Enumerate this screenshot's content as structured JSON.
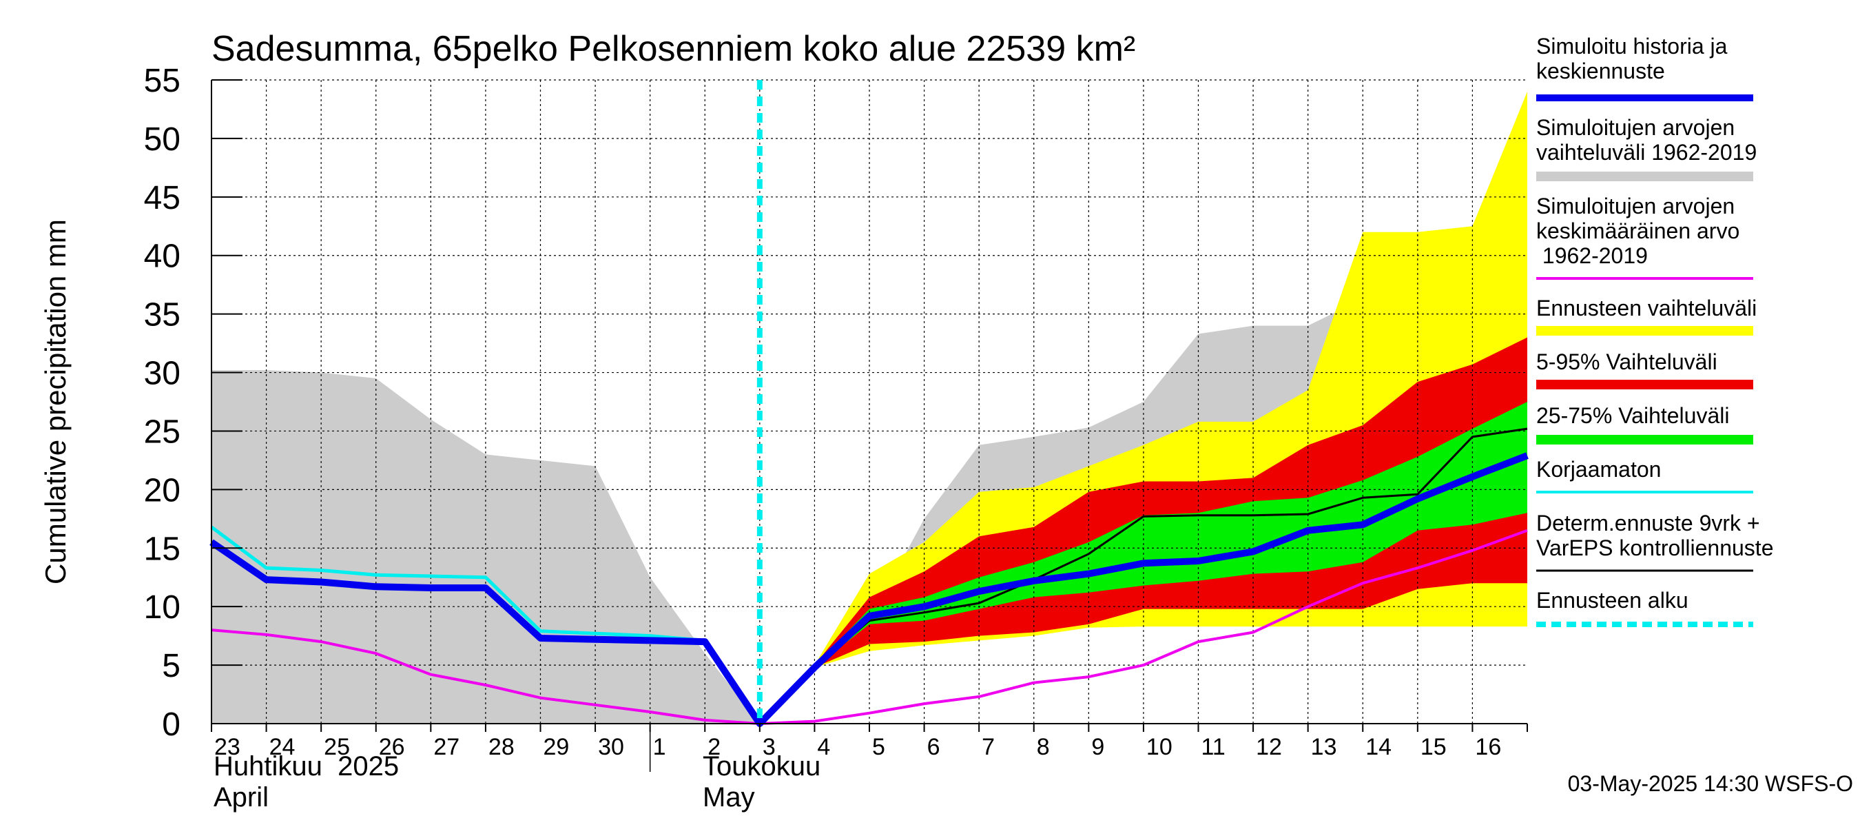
{
  "chart_data": {
    "type": "area",
    "title": "Sadesumma, 65pelko Pelkosenniem koko alue 22539 km²",
    "ylabel": "Cumulative precipitation   mm",
    "ylim": [
      0,
      55
    ],
    "yticks": [
      "0",
      "5",
      "10",
      "15",
      "20",
      "25",
      "30",
      "35",
      "40",
      "45",
      "50",
      "55"
    ],
    "grid": true,
    "x_labels": [
      "23",
      "24",
      "25",
      "26",
      "27",
      "28",
      "29",
      "30",
      "1",
      "2",
      "3",
      "4",
      "5",
      "6",
      "7",
      "8",
      "9",
      "10",
      "11",
      "12",
      "13",
      "14",
      "15",
      "16"
    ],
    "x_dates": [
      "2025-04-23",
      "2025-04-24",
      "2025-04-25",
      "2025-04-26",
      "2025-04-27",
      "2025-04-28",
      "2025-04-29",
      "2025-04-30",
      "2025-05-01",
      "2025-05-02",
      "2025-05-03",
      "2025-05-04",
      "2025-05-05",
      "2025-05-06",
      "2025-05-07",
      "2025-05-08",
      "2025-05-09",
      "2025-05-10",
      "2025-05-11",
      "2025-05-12",
      "2025-05-13",
      "2025-05-14",
      "2025-05-15",
      "2025-05-16",
      "2025-05-17"
    ],
    "month_labels": [
      {
        "fi": "Huhtikuu  2025",
        "en": "April"
      },
      {
        "fi": "Toukokuu",
        "en": "May"
      }
    ],
    "forecast_start": "2025-05-03",
    "legend_position": "right",
    "legend": [
      {
        "label": "Simuloitu historia ja keskiennuste",
        "color": "#0000ee",
        "kind": "line"
      },
      {
        "label": "Simuloitujen arvojen vaihteluväli 1962-2019",
        "color": "#cccccc",
        "kind": "band"
      },
      {
        "label": "Simuloitujen arvojen keskimääräinen arvo 1962-2019",
        "color": "#ee00ee",
        "kind": "line"
      },
      {
        "label": "Ennusteen vaihteluväli",
        "color": "#ffff00",
        "kind": "band"
      },
      {
        "label": "5-95% Vaihteluväli",
        "color": "#ee0000",
        "kind": "band"
      },
      {
        "label": "25-75% Vaihteluväli",
        "color": "#00ee00",
        "kind": "band"
      },
      {
        "label": "Korjaamaton",
        "color": "#00eeee",
        "kind": "line"
      },
      {
        "label": "Determ.ennuste 9vrk + VarEPS kontrolliennuste",
        "color": "#000000",
        "kind": "line"
      },
      {
        "label": "Ennusteen alku",
        "color": "#00eeee",
        "kind": "dashed"
      }
    ],
    "series": [
      {
        "name": "Simuloitujen arvojen vaihteluväli 1962-2019",
        "role": "band",
        "x": [
          "2025-04-23",
          "2025-04-24",
          "2025-04-25",
          "2025-04-26",
          "2025-04-27",
          "2025-04-28",
          "2025-04-29",
          "2025-04-30",
          "2025-05-01",
          "2025-05-02",
          "2025-05-03",
          "2025-05-04",
          "2025-05-05",
          "2025-05-06",
          "2025-05-07",
          "2025-05-08",
          "2025-05-09",
          "2025-05-10",
          "2025-05-11",
          "2025-05-12",
          "2025-05-13",
          "2025-05-14",
          "2025-05-15",
          "2025-05-16",
          "2025-05-17"
        ],
        "upper": [
          30.2,
          30.2,
          30.0,
          29.5,
          26.0,
          23.0,
          22.5,
          22.0,
          12.5,
          6.0,
          0,
          4.8,
          8.8,
          17.5,
          23.8,
          24.5,
          25.3,
          27.5,
          33.3,
          34.0,
          34.0,
          36.3,
          38.0,
          38.7,
          40.2
        ],
        "lower": [
          0,
          0,
          0,
          0,
          0,
          0,
          0,
          0,
          0,
          0,
          0,
          4.8,
          8.8,
          8.8,
          8.8,
          8.8,
          8.8,
          8.8,
          8.8,
          8.8,
          8.8,
          8.8,
          8.8,
          8.8,
          8.8
        ]
      },
      {
        "name": "Ennusteen vaihteluväli",
        "role": "band",
        "x": [
          "2025-05-03",
          "2025-05-04",
          "2025-05-05",
          "2025-05-06",
          "2025-05-07",
          "2025-05-08",
          "2025-05-09",
          "2025-05-10",
          "2025-05-11",
          "2025-05-12",
          "2025-05-13",
          "2025-05-14",
          "2025-05-15",
          "2025-05-16",
          "2025-05-17"
        ],
        "upper": [
          0,
          5.0,
          12.8,
          15.5,
          19.8,
          20.2,
          22.0,
          23.8,
          25.8,
          25.8,
          28.5,
          42.0,
          42.0,
          42.5,
          54.0
        ],
        "lower": [
          0,
          4.8,
          6.2,
          6.7,
          7.1,
          7.5,
          8.2,
          8.3,
          8.3,
          8.3,
          8.3,
          8.3,
          8.3,
          8.3,
          8.3
        ]
      },
      {
        "name": "5-95% Vaihteluväli",
        "role": "band",
        "x": [
          "2025-05-03",
          "2025-05-04",
          "2025-05-05",
          "2025-05-06",
          "2025-05-07",
          "2025-05-08",
          "2025-05-09",
          "2025-05-10",
          "2025-05-11",
          "2025-05-12",
          "2025-05-13",
          "2025-05-14",
          "2025-05-15",
          "2025-05-16",
          "2025-05-17"
        ],
        "upper": [
          0,
          5.0,
          10.8,
          13.0,
          16.0,
          16.8,
          19.8,
          20.7,
          20.7,
          21.0,
          23.8,
          25.5,
          29.2,
          30.7,
          33.0
        ],
        "lower": [
          0,
          4.8,
          6.8,
          7.0,
          7.5,
          7.8,
          8.5,
          9.8,
          9.8,
          9.8,
          9.8,
          9.8,
          11.5,
          12.0,
          12.0
        ]
      },
      {
        "name": "25-75% Vaihteluväli",
        "role": "band",
        "x": [
          "2025-05-03",
          "2025-05-04",
          "2025-05-05",
          "2025-05-06",
          "2025-05-07",
          "2025-05-08",
          "2025-05-09",
          "2025-05-10",
          "2025-05-11",
          "2025-05-12",
          "2025-05-13",
          "2025-05-14",
          "2025-05-15",
          "2025-05-16",
          "2025-05-17"
        ],
        "upper": [
          0,
          4.9,
          9.8,
          10.8,
          12.5,
          13.8,
          15.5,
          17.8,
          18.0,
          19.0,
          19.3,
          20.8,
          22.8,
          25.2,
          27.5
        ],
        "lower": [
          0,
          4.8,
          8.5,
          8.8,
          9.8,
          10.8,
          11.2,
          11.8,
          12.2,
          12.8,
          13.0,
          13.8,
          16.5,
          17.0,
          18.0
        ]
      },
      {
        "name": "Simuloitujen arvojen keskimääräinen arvo 1962-2019",
        "role": "line",
        "x": [
          "2025-04-23",
          "2025-04-24",
          "2025-04-25",
          "2025-04-26",
          "2025-04-27",
          "2025-04-28",
          "2025-04-29",
          "2025-04-30",
          "2025-05-01",
          "2025-05-02",
          "2025-05-03",
          "2025-05-04",
          "2025-05-05",
          "2025-05-06",
          "2025-05-07",
          "2025-05-08",
          "2025-05-09",
          "2025-05-10",
          "2025-05-11",
          "2025-05-12",
          "2025-05-13",
          "2025-05-14",
          "2025-05-15",
          "2025-05-16",
          "2025-05-17"
        ],
        "values": [
          8.0,
          7.6,
          7.0,
          6.0,
          4.2,
          3.3,
          2.2,
          1.6,
          1.0,
          0.3,
          0,
          0.2,
          0.9,
          1.7,
          2.3,
          3.5,
          4.0,
          5.0,
          7.0,
          7.8,
          10.0,
          12.0,
          13.3,
          14.8,
          16.5
        ]
      },
      {
        "name": "Korjaamaton",
        "role": "line",
        "x": [
          "2025-04-23",
          "2025-04-24",
          "2025-04-25",
          "2025-04-26",
          "2025-04-27",
          "2025-04-28",
          "2025-04-29",
          "2025-04-30",
          "2025-05-01",
          "2025-05-02",
          "2025-05-03"
        ],
        "values": [
          16.8,
          13.3,
          13.1,
          12.7,
          12.6,
          12.5,
          7.9,
          7.7,
          7.5,
          7.1,
          0
        ]
      },
      {
        "name": "Determ.ennuste 9vrk + VarEPS kontrolliennuste",
        "role": "line",
        "x": [
          "2025-05-03",
          "2025-05-04",
          "2025-05-05",
          "2025-05-06",
          "2025-05-07",
          "2025-05-08",
          "2025-05-09",
          "2025-05-10",
          "2025-05-11",
          "2025-05-12",
          "2025-05-13",
          "2025-05-14",
          "2025-05-15",
          "2025-05-16",
          "2025-05-17"
        ],
        "values": [
          0,
          4.8,
          8.8,
          9.5,
          10.3,
          12.3,
          14.5,
          17.7,
          17.8,
          17.8,
          17.9,
          19.3,
          19.6,
          24.5,
          25.2
        ]
      },
      {
        "name": "Simuloitu historia ja keskiennuste",
        "role": "line",
        "x": [
          "2025-04-23",
          "2025-04-24",
          "2025-04-25",
          "2025-04-26",
          "2025-04-27",
          "2025-04-28",
          "2025-04-29",
          "2025-04-30",
          "2025-05-01",
          "2025-05-02",
          "2025-05-03",
          "2025-05-04",
          "2025-05-05",
          "2025-05-06",
          "2025-05-07",
          "2025-05-08",
          "2025-05-09",
          "2025-05-10",
          "2025-05-11",
          "2025-05-12",
          "2025-05-13",
          "2025-05-14",
          "2025-05-15",
          "2025-05-16",
          "2025-05-17"
        ],
        "values": [
          15.5,
          12.3,
          12.1,
          11.7,
          11.6,
          11.6,
          7.3,
          7.2,
          7.1,
          7.0,
          0,
          4.8,
          9.2,
          10.0,
          11.3,
          12.2,
          12.8,
          13.7,
          13.9,
          14.7,
          16.5,
          17.0,
          19.2,
          21.1,
          22.9
        ]
      }
    ]
  },
  "footer": "03-May-2025 14:30 WSFS-O"
}
